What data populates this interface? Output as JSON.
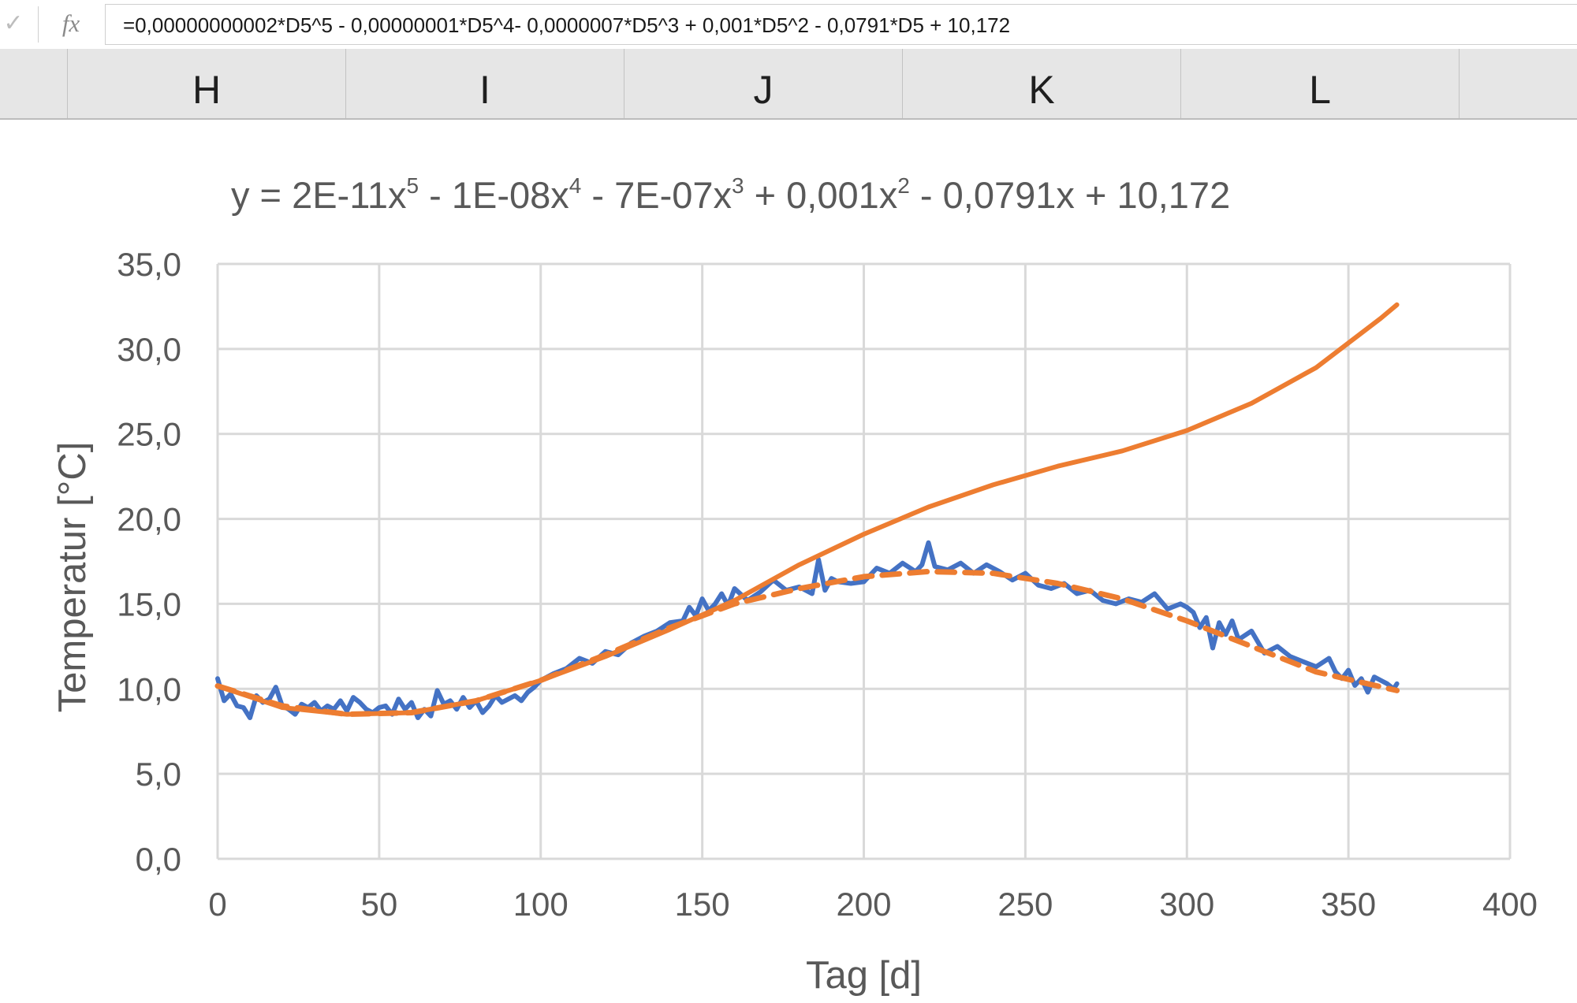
{
  "formula_bar": {
    "confirm_icon": "checkmark-icon",
    "fx_label": "fx",
    "formula": "=0,00000000002*D5^5 - 0,00000001*D5^4- 0,0000007*D5^3 + 0,001*D5^2 - 0,0791*D5 + 10,172"
  },
  "column_headers": [
    "H",
    "I",
    "J",
    "K",
    "L"
  ],
  "chart_data": {
    "type": "line",
    "trendline_equation": {
      "parts": [
        "y = 2E-11x",
        "5",
        " - 1E-08x",
        "4",
        " - 7E-07x",
        "3",
        " + 0,001x",
        "2",
        " - 0,0791x + 10,172"
      ]
    },
    "xlabel": "Tag [d]",
    "ylabel": "Temperatur [°C]",
    "xlim": [
      0,
      400
    ],
    "ylim": [
      0,
      35
    ],
    "x_ticks": [
      "0",
      "50",
      "100",
      "150",
      "200",
      "250",
      "300",
      "350",
      "400"
    ],
    "y_ticks": [
      "0,0",
      "5,0",
      "10,0",
      "15,0",
      "20,0",
      "25,0",
      "30,0",
      "35,0"
    ],
    "grid": true,
    "legend": "none",
    "colors": {
      "measured": "#4472c4",
      "trend": "#ed7d31",
      "formula": "#ed7d31",
      "grid": "#d9d9d9"
    },
    "series": [
      {
        "style": "solid-thin",
        "color": "#4472c4",
        "x": [
          0,
          2,
          4,
          6,
          8,
          10,
          12,
          14,
          16,
          18,
          20,
          22,
          24,
          26,
          28,
          30,
          32,
          34,
          36,
          38,
          40,
          42,
          44,
          46,
          48,
          50,
          52,
          54,
          56,
          58,
          60,
          62,
          64,
          66,
          68,
          70,
          72,
          74,
          76,
          78,
          80,
          82,
          84,
          86,
          88,
          90,
          92,
          94,
          96,
          98,
          100,
          104,
          108,
          112,
          116,
          120,
          124,
          128,
          132,
          136,
          140,
          144,
          146,
          148,
          150,
          152,
          154,
          156,
          158,
          160,
          164,
          168,
          172,
          176,
          180,
          184,
          186,
          188,
          190,
          192,
          196,
          200,
          204,
          208,
          212,
          216,
          218,
          220,
          222,
          226,
          230,
          234,
          238,
          242,
          246,
          250,
          254,
          258,
          262,
          266,
          270,
          274,
          278,
          282,
          286,
          290,
          294,
          298,
          300,
          302,
          304,
          306,
          308,
          310,
          312,
          314,
          316,
          320,
          324,
          328,
          332,
          336,
          340,
          344,
          346,
          348,
          350,
          352,
          354,
          356,
          358,
          360,
          362,
          364,
          365
        ],
        "y": [
          10.6,
          9.3,
          9.7,
          9.0,
          8.9,
          8.3,
          9.6,
          9.2,
          9.4,
          10.1,
          9.0,
          8.8,
          8.5,
          9.1,
          8.9,
          9.2,
          8.7,
          9.0,
          8.8,
          9.3,
          8.7,
          9.5,
          9.2,
          8.8,
          8.6,
          8.9,
          9.0,
          8.5,
          9.4,
          8.8,
          9.2,
          8.3,
          8.8,
          8.4,
          9.9,
          9.1,
          9.3,
          8.8,
          9.5,
          8.9,
          9.3,
          8.6,
          9.0,
          9.6,
          9.2,
          9.4,
          9.6,
          9.3,
          9.8,
          10.1,
          10.5,
          10.9,
          11.2,
          11.8,
          11.5,
          12.2,
          12.0,
          12.7,
          13.1,
          13.4,
          13.9,
          14.0,
          14.8,
          14.3,
          15.3,
          14.6,
          15.0,
          15.6,
          14.9,
          15.9,
          15.2,
          15.7,
          16.4,
          15.8,
          16.0,
          15.6,
          17.6,
          15.8,
          16.5,
          16.3,
          16.2,
          16.3,
          17.1,
          16.8,
          17.4,
          16.9,
          17.3,
          18.6,
          17.2,
          17.0,
          17.4,
          16.8,
          17.3,
          16.9,
          16.4,
          16.8,
          16.1,
          15.9,
          16.2,
          15.6,
          15.8,
          15.2,
          15.0,
          15.3,
          15.1,
          15.6,
          14.7,
          15.0,
          14.8,
          14.5,
          13.6,
          14.2,
          12.4,
          13.9,
          13.2,
          14.0,
          12.9,
          13.4,
          12.1,
          12.5,
          11.9,
          11.6,
          11.3,
          11.8,
          11.0,
          10.6,
          11.1,
          10.2,
          10.6,
          9.8,
          10.7,
          10.5,
          10.3,
          10.0,
          10.3
        ]
      },
      {
        "style": "dashed",
        "color": "#ed7d31",
        "x": [
          0,
          20,
          40,
          60,
          80,
          100,
          120,
          140,
          160,
          180,
          200,
          220,
          240,
          260,
          280,
          300,
          320,
          340,
          365
        ],
        "y": [
          10.17,
          9.0,
          8.5,
          8.6,
          9.3,
          10.5,
          12.0,
          13.6,
          15.0,
          15.9,
          16.6,
          16.9,
          16.8,
          16.2,
          15.3,
          14.0,
          12.5,
          11.0,
          9.9
        ]
      },
      {
        "style": "solid-thick",
        "color": "#ed7d31",
        "x": [
          0,
          20,
          40,
          60,
          80,
          100,
          120,
          140,
          160,
          180,
          200,
          220,
          240,
          260,
          280,
          300,
          320,
          340,
          360,
          365
        ],
        "y": [
          10.17,
          8.9,
          8.5,
          8.6,
          9.3,
          10.5,
          11.9,
          13.5,
          15.2,
          17.3,
          19.1,
          20.7,
          22.0,
          23.1,
          24.0,
          25.2,
          26.8,
          28.9,
          31.8,
          32.6
        ]
      }
    ]
  }
}
